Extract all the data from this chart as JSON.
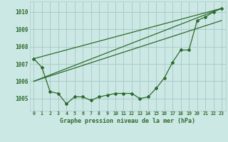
{
  "title": "Graphe pression niveau de la mer (hPa)",
  "background_color": "#cce8e4",
  "grid_color": "#aaccca",
  "line_color": "#2d6a2d",
  "xlim": [
    -0.5,
    23.5
  ],
  "ylim": [
    1004.3,
    1010.6
  ],
  "yticks": [
    1005,
    1006,
    1007,
    1008,
    1009,
    1010
  ],
  "xtick_labels": [
    "0",
    "1",
    "2",
    "3",
    "4",
    "5",
    "6",
    "7",
    "8",
    "9",
    "10",
    "11",
    "12",
    "13",
    "14",
    "15",
    "16",
    "17",
    "18",
    "19",
    "20",
    "21",
    "22",
    "23"
  ],
  "series1_x": [
    0,
    1,
    2,
    3,
    4,
    5,
    6,
    7,
    8,
    9,
    10,
    11,
    12,
    13,
    14,
    15,
    16,
    17,
    18,
    19,
    20,
    21,
    22,
    23
  ],
  "series1_y": [
    1007.3,
    1006.8,
    1005.4,
    1005.3,
    1004.7,
    1005.1,
    1005.1,
    1004.9,
    1005.1,
    1005.2,
    1005.3,
    1005.3,
    1005.3,
    1005.0,
    1005.1,
    1005.6,
    1006.2,
    1007.1,
    1007.8,
    1007.8,
    1009.5,
    1009.7,
    1010.0,
    1010.2
  ],
  "line2_x": [
    0,
    23
  ],
  "line2_y": [
    1007.3,
    1010.2
  ],
  "line3_x": [
    0,
    23
  ],
  "line3_y": [
    1006.0,
    1010.2
  ],
  "line4_x": [
    0,
    23
  ],
  "line4_y": [
    1006.0,
    1009.5
  ]
}
